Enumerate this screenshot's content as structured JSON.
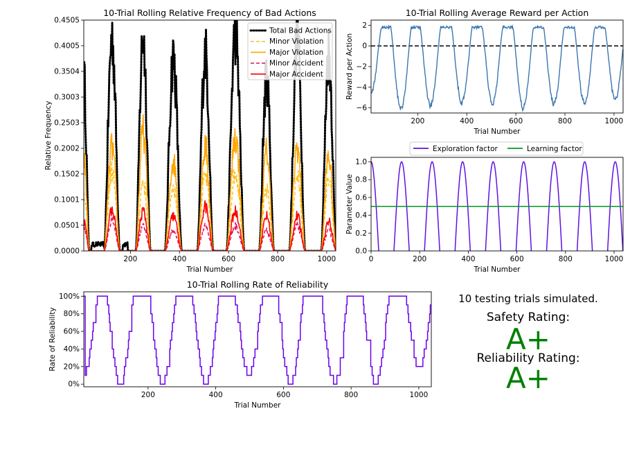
{
  "chart_data": [
    {
      "id": "bad",
      "type": "line",
      "title": "10-Trial Rolling Relative Frequency of Bad Actions",
      "xlabel": "Trial Number",
      "ylabel": "Relative Frequency",
      "xlim": [
        10,
        1037
      ],
      "ylim": [
        0,
        0.4505
      ],
      "xticks": [
        200,
        400,
        600,
        800,
        1000
      ],
      "xtick_labels": [
        "200",
        "400",
        "600",
        "800",
        "1000"
      ],
      "yticks": [
        0,
        0.0501,
        0.1001,
        0.1502,
        0.2002,
        0.2503,
        0.3003,
        0.3504,
        0.4005,
        0.4505
      ],
      "ytick_labels": [
        "0.0000",
        "0.0501",
        "0.1001",
        "0.1502",
        "0.2002",
        "0.2503",
        "0.3003",
        "0.3504",
        "0.4005",
        "0.4505"
      ],
      "legend": "top-right",
      "peak_centers": [
        10,
        125,
        252,
        375,
        505,
        628,
        755,
        880,
        1008
      ],
      "peak_half_widths": [
        22,
        32,
        30,
        34,
        32,
        36,
        30,
        32,
        30
      ],
      "series": [
        {
          "name": "Total Bad Actions",
          "color": "#000000",
          "style": "dotted",
          "peaks": [
            0.35,
            0.43,
            0.43,
            0.39,
            0.4,
            0.44,
            0.35,
            0.43,
            0.4
          ]
        },
        {
          "name": "Minor Violation",
          "color": "#ffc020",
          "style": "dashed",
          "peaks": [
            0.12,
            0.16,
            0.14,
            0.13,
            0.15,
            0.16,
            0.12,
            0.15,
            0.14
          ]
        },
        {
          "name": "Major Violation",
          "color": "#ffa500",
          "style": "solid",
          "peaks": [
            0.19,
            0.21,
            0.24,
            0.18,
            0.21,
            0.23,
            0.2,
            0.21,
            0.19
          ]
        },
        {
          "name": "Minor Accident",
          "color": "#e0105a",
          "style": "dashed",
          "peaks": [
            0.05,
            0.06,
            0.05,
            0.04,
            0.05,
            0.05,
            0.04,
            0.05,
            0.04
          ]
        },
        {
          "name": "Major Accident",
          "color": "#ff0000",
          "style": "solid",
          "peaks": [
            0.06,
            0.08,
            0.08,
            0.07,
            0.09,
            0.08,
            0.07,
            0.07,
            0.06
          ]
        }
      ]
    },
    {
      "id": "reward",
      "type": "line",
      "title": "10-Trial Rolling Average Reward per Action",
      "xlabel": "Trial Number",
      "ylabel": "Reward per Action",
      "xlim": [
        10,
        1037
      ],
      "ylim": [
        -6.5,
        2.5
      ],
      "xticks": [
        200,
        400,
        600,
        800,
        1000
      ],
      "xtick_labels": [
        "200",
        "400",
        "600",
        "800",
        "1000"
      ],
      "yticks": [
        -6,
        -4,
        -2,
        0,
        2
      ],
      "ytick_labels": [
        "−6",
        "−4",
        "−2",
        "0",
        "2"
      ],
      "reference_line": 0,
      "dip_centers": [
        10,
        132,
        252,
        380,
        505,
        630,
        755,
        880,
        1005
      ],
      "dip_values": [
        -4.5,
        -6.2,
        -5.8,
        -5.5,
        -5.6,
        -6.0,
        -5.6,
        -5.6,
        -5.2
      ],
      "plateau": 1.8,
      "series": [
        {
          "color": "#3a75b0"
        }
      ]
    },
    {
      "id": "params",
      "type": "line",
      "xlabel": "Trial Number",
      "ylabel": "Parameter Value",
      "xlim": [
        0,
        1037
      ],
      "ylim": [
        0,
        1.05
      ],
      "xticks": [
        0,
        200,
        400,
        600,
        800,
        1000
      ],
      "xtick_labels": [
        "0",
        "200",
        "400",
        "600",
        "800",
        "1000"
      ],
      "yticks": [
        0,
        0.2,
        0.4,
        0.6,
        0.8,
        1.0
      ],
      "ytick_labels": [
        "0.0",
        "0.2",
        "0.4",
        "0.6",
        "0.8",
        "1.0"
      ],
      "legend": "top-outside",
      "series": [
        {
          "name": "Exploration factor",
          "color": "#6010e0",
          "period": 125.6
        },
        {
          "name": "Learning factor",
          "color": "#009a20",
          "value": 0.5
        }
      ]
    },
    {
      "id": "reliability",
      "type": "line",
      "title": "10-Trial Rolling Rate of Reliability",
      "xlabel": "Trial Number",
      "ylabel": "Rate of Reliability",
      "xlim": [
        10,
        1037
      ],
      "ylim": [
        -3,
        105
      ],
      "xticks": [
        200,
        400,
        600,
        800,
        1000
      ],
      "xtick_labels": [
        "200",
        "400",
        "600",
        "800",
        "1000"
      ],
      "yticks": [
        0,
        20,
        40,
        60,
        80,
        100
      ],
      "ytick_labels": [
        "0%",
        "20%",
        "40%",
        "60%",
        "80%",
        "100%"
      ],
      "dip_centers": [
        10,
        117,
        242,
        370,
        497,
        620,
        750,
        872,
        1000
      ],
      "dip_values": [
        10,
        0,
        0,
        0,
        10,
        0,
        0,
        0,
        20
      ],
      "series": [
        {
          "color": "#6a00e8"
        }
      ]
    }
  ],
  "summary": {
    "trials": "10 testing trials simulated.",
    "safety_label": "Safety Rating:",
    "safety_grade": "A+",
    "reliability_label": "Reliability Rating:",
    "reliability_grade": "A+",
    "grade_color": "#008000"
  }
}
